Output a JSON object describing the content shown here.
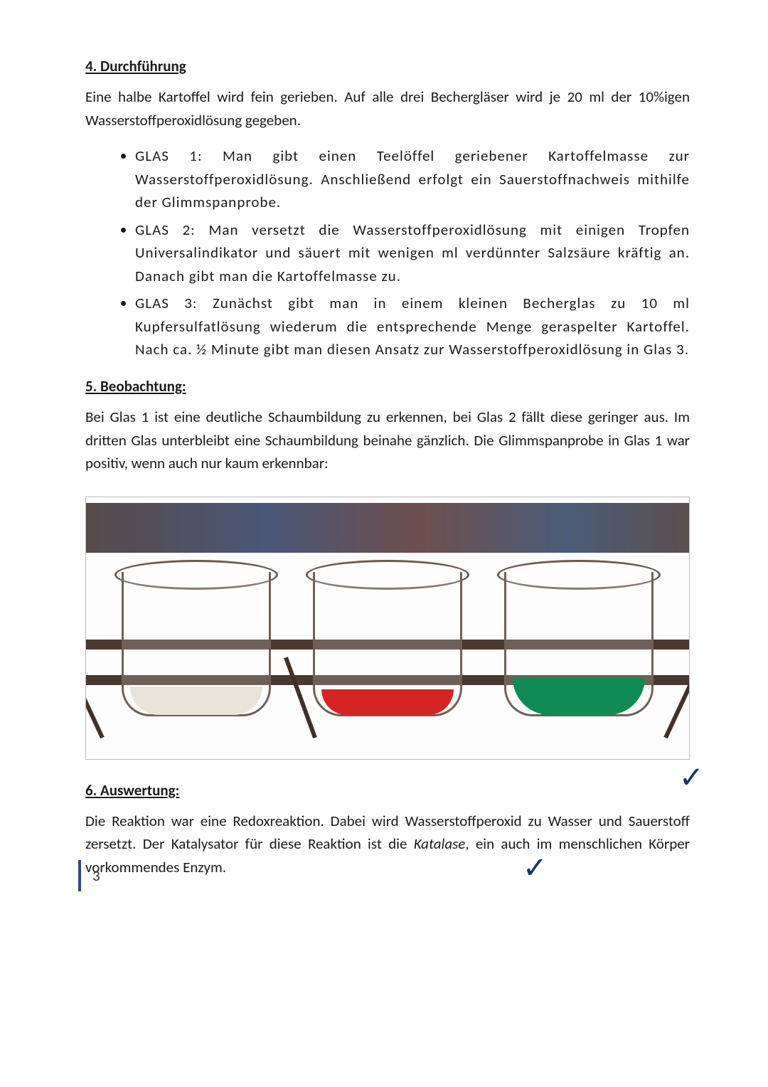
{
  "page_number": "3",
  "section4": {
    "heading": "4. Durchführung",
    "intro": "Eine halbe Kartoffel wird fein gerieben. Auf alle drei Bechergläser wird je 20 ml der 10%igen Wasserstoffperoxidlösung gegeben.",
    "items": [
      "GLAS 1: Man gibt einen Teelöffel geriebener Kartoffelmasse zur Wasserstoffperoxidlösung. Anschließend erfolgt ein Sauerstoffnachweis mithilfe der Glimmspanprobe.",
      "GLAS 2: Man versetzt die Wasserstoffperoxidlösung mit einigen Tropfen Universalindikator und säuert mit wenigen ml verdünnter Salzsäure kräftig an. Danach gibt man die Kartoffelmasse zu.",
      "GLAS 3: Zunächst gibt man in einem kleinen Becherglas zu 10 ml Kupfersulfatlösung wiederum die entsprechende Menge geraspelter Kartoffel. Nach ca. ½ Minute gibt man diesen Ansatz zur Wasserstoffperoxidlösung in Glas 3."
    ]
  },
  "section5": {
    "heading": "5. Beobachtung:",
    "text": "Bei Glas 1 ist eine deutliche Schaumbildung zu erkennen, bei Glas 2 fällt diese geringer aus. Im dritten Glas unterbleibt eine Schaumbildung beinahe gänzlich. Die Glimmspanprobe in Glas 1 war positiv, wenn auch nur kaum erkennbar:"
  },
  "figure": {
    "type": "photo-sketch",
    "description": "Drei Bechergläser nebeneinander",
    "background_colors": [
      "#3a2a2a",
      "#2a3a60",
      "#553030"
    ],
    "shelf_color": "#4a3830",
    "beaker_outline_color": "#706058",
    "beakers": [
      {
        "liquid_color": "#e8e4da",
        "liquid_height": 40
      },
      {
        "liquid_color": "#d62424",
        "liquid_height": 36
      },
      {
        "liquid_color": "#0f8a55",
        "liquid_height": 52
      }
    ]
  },
  "section6": {
    "heading": "6. Auswertung:",
    "text_pre": "Die Reaktion war eine Redoxreaktion. Dabei wird Wasserstoffperoxid zu Wasser und Sauerstoff zersetzt. Der Katalysator für diese Reaktion ist die ",
    "italic_word": "Katalase",
    "text_post": ", ein auch im menschlichen Körper vorkommendes Enzym."
  },
  "checkmarks": {
    "glyph": "✓",
    "color": "#18365e"
  }
}
